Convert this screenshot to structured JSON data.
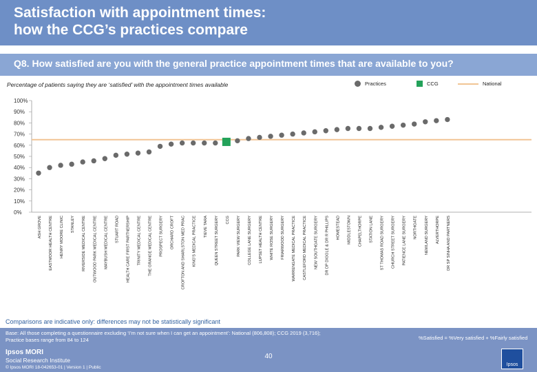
{
  "header": {
    "title_line1": "Satisfaction with appointment times:",
    "title_line2": "how the CCG’s practices compare"
  },
  "question": "Q8. How satisfied are you with the general practice appointment times that are available to you?",
  "subtitle": "Percentage of patients saying they are ‘satisfied’ with the appointment times available",
  "legend": {
    "practices": "Practices",
    "ccg": "CCG",
    "national": "National"
  },
  "colors": {
    "practice": "#6a6a6a",
    "ccg": "#23a25a",
    "national": "#f1c493",
    "header": "#6e8fc6",
    "question_bar": "#8aa6d4",
    "footer": "#7b93c4",
    "note": "#2f5f9e"
  },
  "chart_data": {
    "type": "scatter",
    "title": "Percentage of patients saying they are ‘satisfied’ with the appointment times available",
    "ylim": [
      0,
      100
    ],
    "yticks": [
      0,
      10,
      20,
      30,
      40,
      50,
      60,
      70,
      80,
      90,
      100
    ],
    "ytick_suffix": "%",
    "national_value": 65,
    "ccg_index": 17,
    "categories": [
      "ASH GROVE",
      "EASTMOOR HEALTH CENTRE",
      "HENRY MOORE CLINIC",
      "STANLEY",
      "RIVERSIDE MEDICAL CENTRE",
      "OUTWOOD PARK MEDICAL CENTRE",
      "MAYBUSH MEDICAL CENTRE",
      "STUART ROAD",
      "HEALTH CARE FIRST PARTNERSHIP",
      "TRINITY MEDICAL CENTRE",
      "THE GRANGE MEDICAL CENTRE",
      "PROSPECT SURGERY",
      "ORCHARD CROFT",
      "CROFTON AND SHARLSTON MED PRAC",
      "KING'S MEDICAL PRACTICE",
      "TIEVE TARA",
      "QUEEN STREET SURGERY",
      "CCG",
      "PARK VIEW SURGERY",
      "COLLEGE LANE SURGERY",
      "LUPSET HEALTH CENTRE",
      "WHITE ROSE SURGERY",
      "FRIARWOOD SURGERY",
      "WARRENGATE MEDICAL PRACTICE",
      "CASTLEFORD MEDICAL PRACTICE",
      "NEW SOUTHGATE SURGERY",
      "DR DP DIGGLE & DR R PHILLIPS",
      "HOMESTEAD",
      "MIDDLESTOWN",
      "CHAPELTHORPE",
      "STATION LANE",
      "ST THOMAS ROAD SURGERY",
      "CHURCH STREET SURGERY",
      "PATIENCE LANE SURGERY",
      "NORTHGATE",
      "NEWLAND SURGERY",
      "ALVERTHORPE",
      "DR SP SINHA AND PARTNERS"
    ],
    "values": [
      35,
      40,
      42,
      43,
      45,
      46,
      48,
      51,
      52,
      53,
      54,
      59,
      61,
      62,
      62,
      62,
      62,
      63,
      64,
      66,
      67,
      68,
      69,
      70,
      71,
      72,
      73,
      74,
      75,
      75,
      75,
      76,
      77,
      78,
      79,
      81,
      82,
      83
    ]
  },
  "note": "Comparisons are indicative only: differences may not be statistically significant",
  "footer": {
    "base_line1": "Base: All those completing a questionnaire excluding ‘I’m not sure when I can get an appointment’: National (806,808); CCG 2019 (3,716);",
    "base_line2": "Practice bases range from 84 to 124",
    "formula": "%Satisfied = %Very satisfied + %Fairly satisfied",
    "page_number": "40",
    "logo_main": "Ipsos MORI",
    "logo_sub": "Social Research Institute",
    "copyright": "© Ipsos MORI     18-042653-01 | Version 1 | Public",
    "badge": "Ipsos"
  }
}
